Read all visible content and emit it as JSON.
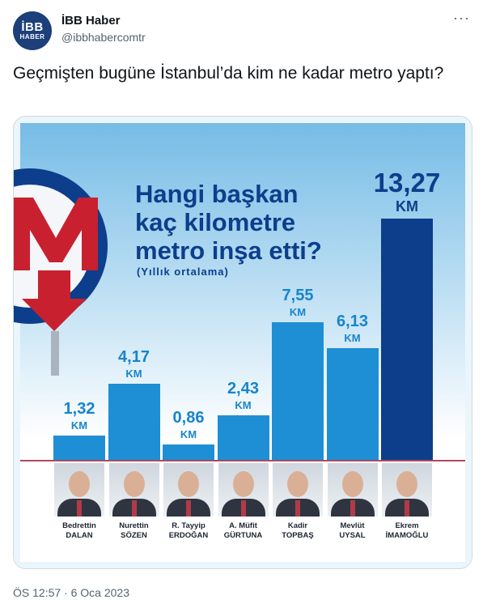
{
  "account": {
    "name": "İBB Haber",
    "handle": "@ibbhabercomtr",
    "avatar_line1": "İBB",
    "avatar_line2": "HABER"
  },
  "more_icon": "···",
  "tweet": {
    "text": "Geçmişten bugüne İstanbul’da kim ne kadar metro yaptı?",
    "timestamp": "ÖS 12:57 · 6 Oca 2023"
  },
  "infographic": {
    "title_line1": "Hangi başkan",
    "title_line2": "kaç kilometre",
    "title_line3": "metro inşa etti?",
    "subtitle": "(Yıllık ortalama)",
    "logo_icon": "metro-m-logo-icon",
    "colors": {
      "bar": "#1e8fd5",
      "bar_highlight": "#0c3e8c",
      "baseline": "#b04860"
    }
  },
  "chart_data": {
    "type": "bar",
    "unit": "KM",
    "categories": [
      "Bedrettin DALAN",
      "Nurettin SÖZEN",
      "R. Tayyip ERDOĞAN",
      "A. Müfit GÜRTUNA",
      "Kadir TOPBAŞ",
      "Mevlüt UYSAL",
      "Ekrem İMAMOĞLU"
    ],
    "values": [
      1.32,
      4.17,
      0.86,
      2.43,
      7.55,
      6.13,
      13.27
    ],
    "value_labels": [
      "1,32",
      "4,17",
      "0,86",
      "2,43",
      "7,55",
      "6,13",
      "13,27"
    ],
    "names_line1": [
      "Bedrettin",
      "Nurettin",
      "R. Tayyip",
      "A. Müfit",
      "Kadir",
      "Mevlüt",
      "Ekrem"
    ],
    "names_line2": [
      "DALAN",
      "SÖZEN",
      "ERDOĞAN",
      "GÜRTUNA",
      "TOPBAŞ",
      "UYSAL",
      "İMAMOĞLU"
    ],
    "highlight_index": 6
  }
}
